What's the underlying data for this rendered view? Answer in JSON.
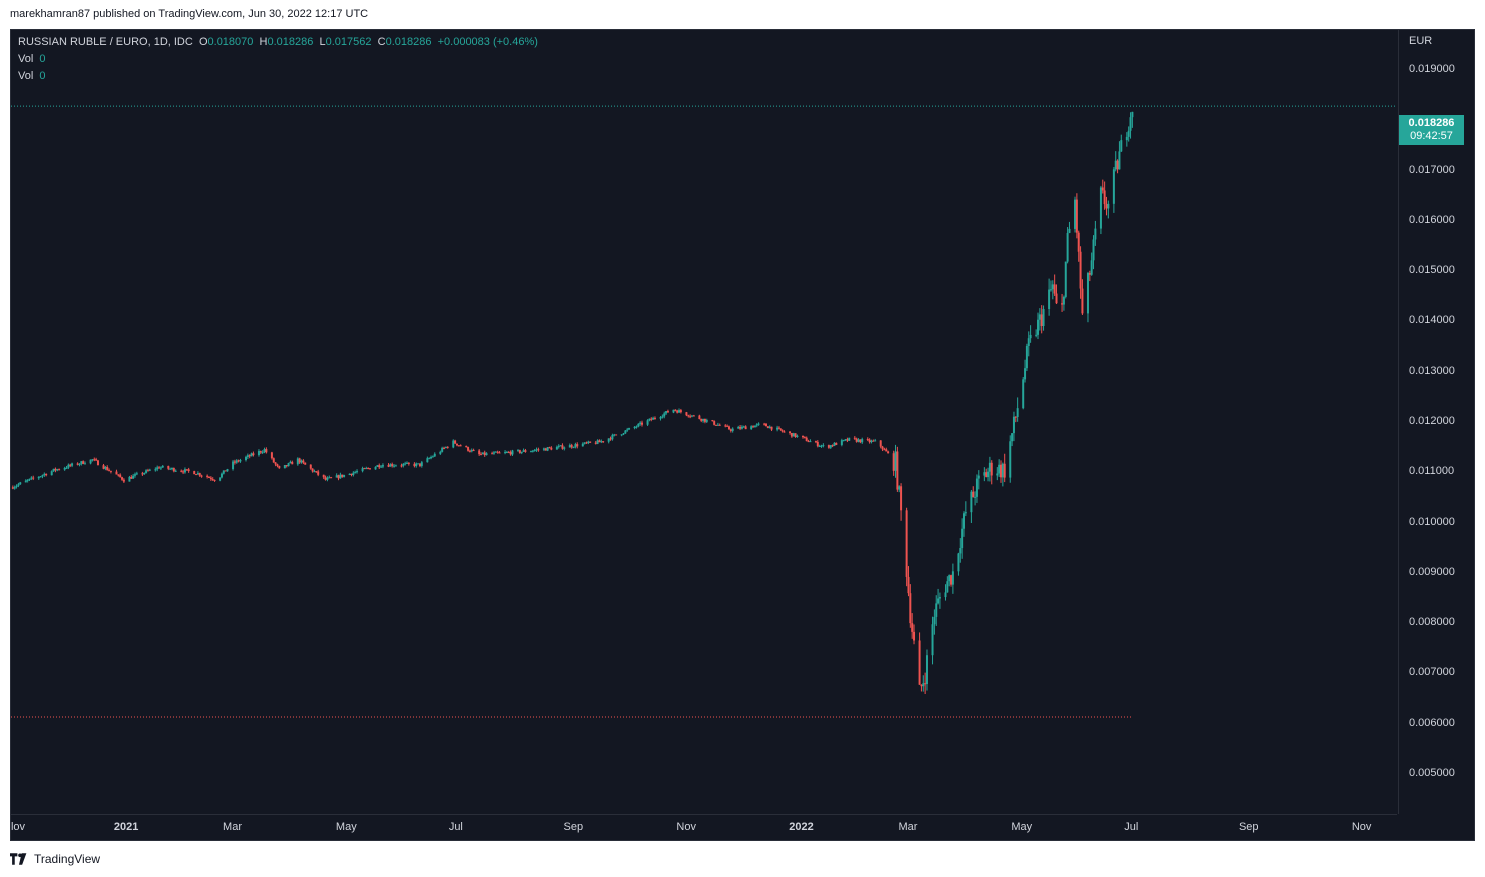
{
  "header": {
    "published": "marekhamran87 published on TradingView.com, Jun 30, 2022 12:17 UTC"
  },
  "legend": {
    "symbol": "RUSSIAN RUBLE / EURO, 1D, IDC",
    "o_label": "O",
    "o": "0.018070",
    "h_label": "H",
    "h": "0.018286",
    "l_label": "L",
    "l": "0.017562",
    "c_label": "C",
    "c": "0.018286",
    "change": "+0.000083 (+0.46%)",
    "vol_rows": [
      {
        "label": "Vol",
        "value": "0"
      },
      {
        "label": "Vol",
        "value": "0"
      }
    ]
  },
  "price_axis": {
    "currency": "EUR",
    "ticks": [
      "0.019000",
      "0.017000",
      "0.016000",
      "0.015000",
      "0.014000",
      "0.013000",
      "0.012000",
      "0.011000",
      "0.010000",
      "0.009000",
      "0.008000",
      "0.007000",
      "0.006000",
      "0.005000"
    ],
    "last_price": "0.018286",
    "countdown": "09:42:57"
  },
  "time_axis": {
    "ticks": [
      "lov",
      "2021",
      "Mar",
      "May",
      "Jul",
      "Sep",
      "Nov",
      "2022",
      "Mar",
      "May",
      "Jul",
      "Sep",
      "Nov"
    ]
  },
  "footer": {
    "brand": "TradingView"
  },
  "colors": {
    "up": "#26a69a",
    "down": "#ef5350",
    "background": "#131722",
    "last_line": "#26a69a",
    "low_line": "#ef5350"
  },
  "chart_data": {
    "type": "candlestick",
    "title": "RUSSIAN RUBLE / EURO, 1D, IDC",
    "currency": "EUR",
    "ylim": [
      0.0042,
      0.0198
    ],
    "xlim_dates": [
      "2020-11-01",
      "2022-11-20"
    ],
    "grid": false,
    "last_price": 0.018286,
    "period_low": 0.00613,
    "series_path": [
      [
        "2020-11-01",
        0.0107
      ],
      [
        "2020-11-25",
        0.01105
      ],
      [
        "2020-12-15",
        0.01125
      ],
      [
        "2021-01-01",
        0.01085
      ],
      [
        "2021-01-20",
        0.0111
      ],
      [
        "2021-02-08",
        0.011
      ],
      [
        "2021-02-20",
        0.01085
      ],
      [
        "2021-03-01",
        0.01118
      ],
      [
        "2021-03-18",
        0.01145
      ],
      [
        "2021-03-26",
        0.01105
      ],
      [
        "2021-04-05",
        0.01125
      ],
      [
        "2021-04-20",
        0.01085
      ],
      [
        "2021-05-01",
        0.01095
      ],
      [
        "2021-05-20",
        0.01115
      ],
      [
        "2021-06-10",
        0.01115
      ],
      [
        "2021-06-28",
        0.0116
      ],
      [
        "2021-07-12",
        0.01135
      ],
      [
        "2021-08-01",
        0.0114
      ],
      [
        "2021-08-25",
        0.0115
      ],
      [
        "2021-09-15",
        0.0116
      ],
      [
        "2021-10-01",
        0.01185
      ],
      [
        "2021-10-25",
        0.01225
      ],
      [
        "2021-11-10",
        0.01205
      ],
      [
        "2021-11-25",
        0.01185
      ],
      [
        "2021-12-12",
        0.01195
      ],
      [
        "2022-01-01",
        0.0117
      ],
      [
        "2022-01-15",
        0.0115
      ],
      [
        "2022-01-28",
        0.01165
      ],
      [
        "2022-02-12",
        0.0116
      ],
      [
        "2022-02-22",
        0.0112
      ],
      [
        "2022-02-27",
        0.0095
      ],
      [
        "2022-03-02",
        0.0082
      ],
      [
        "2022-03-07",
        0.0066
      ],
      [
        "2022-03-10",
        0.007
      ],
      [
        "2022-03-15",
        0.0082
      ],
      [
        "2022-03-20",
        0.0087
      ],
      [
        "2022-03-25",
        0.009
      ],
      [
        "2022-04-01",
        0.0102
      ],
      [
        "2022-04-08",
        0.0108
      ],
      [
        "2022-04-15",
        0.0111
      ],
      [
        "2022-04-22",
        0.01105
      ],
      [
        "2022-04-28",
        0.0121
      ],
      [
        "2022-05-05",
        0.0135
      ],
      [
        "2022-05-12",
        0.0141
      ],
      [
        "2022-05-18",
        0.0147
      ],
      [
        "2022-05-22",
        0.0138
      ],
      [
        "2022-05-26",
        0.0156
      ],
      [
        "2022-05-30",
        0.0164
      ],
      [
        "2022-06-03",
        0.0141
      ],
      [
        "2022-06-08",
        0.0152
      ],
      [
        "2022-06-13",
        0.0165
      ],
      [
        "2022-06-17",
        0.0163
      ],
      [
        "2022-06-21",
        0.017
      ],
      [
        "2022-06-25",
        0.0176
      ],
      [
        "2022-06-30",
        0.01829
      ]
    ]
  }
}
